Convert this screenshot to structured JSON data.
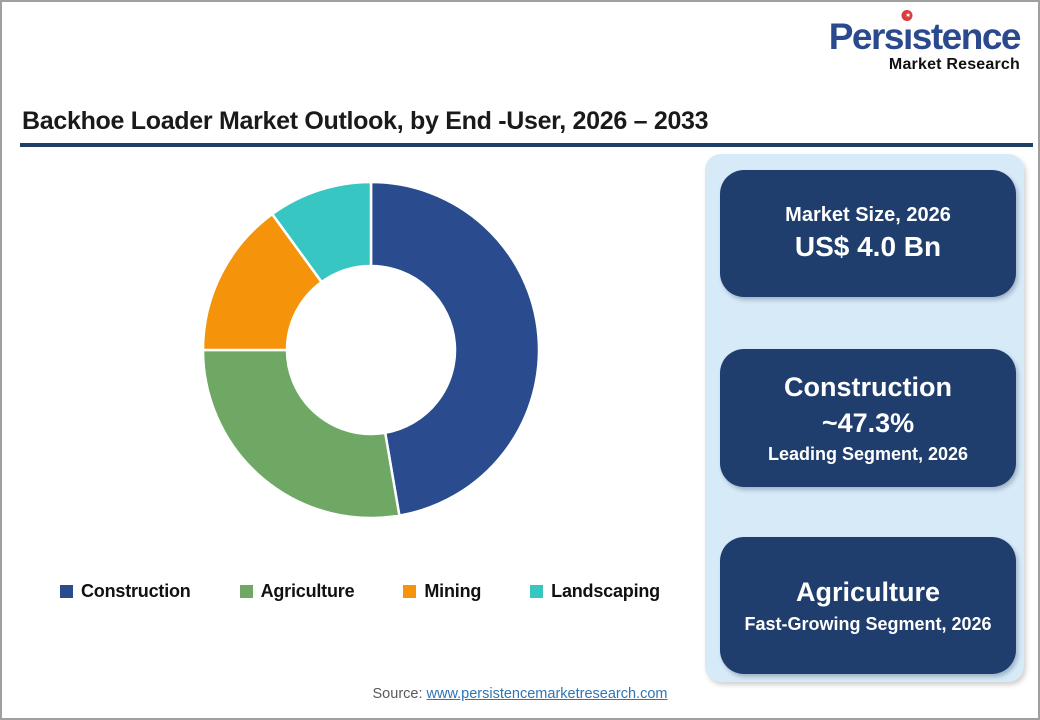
{
  "logo": {
    "brand_prefix": "Pers",
    "brand_i": "ı",
    "brand_suffix": "stence",
    "subtitle": "Market Research",
    "brand_color": "#2b4a8e",
    "dot_color": "#d93a3a",
    "dot_glyph": "✶"
  },
  "title": "Backhoe Loader Market Outlook, by End -User, 2026 – 2033",
  "title_rule_color": "#1f3f66",
  "panel": {
    "background": "#d7eaf8",
    "card_background": "#1f3e6e"
  },
  "market_size_card": {
    "title": "Market Size, 2026",
    "value": "US$ 4.0 Bn"
  },
  "leading_segment_card": {
    "title": "Construction",
    "value": "~47.3%",
    "caption": "Leading Segment, 2026"
  },
  "fast_growing_card": {
    "title": "Agriculture",
    "caption": "Fast-Growing Segment, 2026"
  },
  "source": {
    "prefix": "Source: ",
    "link_text": "www.persistencemarketresearch.com",
    "link_color": "#2e75b6"
  },
  "chart_data": {
    "type": "pie",
    "subtype": "donut",
    "title": "Backhoe Loader Market Outlook, by End -User, 2026 – 2033",
    "categories": [
      "Construction",
      "Agriculture",
      "Mining",
      "Landscaping"
    ],
    "values": [
      47.3,
      27.7,
      15.0,
      10.0
    ],
    "unit": "%",
    "colors": [
      "#2a4b8d",
      "#6fa865",
      "#f5930b",
      "#38c6c3"
    ],
    "start_angle_deg": 0,
    "direction": "clockwise",
    "inner_radius_ratio": 0.5,
    "separator_color": "#ffffff",
    "legend_position": "bottom",
    "annotations": {
      "market_size_2026": "US$ 4.0 Bn",
      "leading_segment_2026": "Construction ~47.3%",
      "fast_growing_segment_2026": "Agriculture"
    }
  }
}
